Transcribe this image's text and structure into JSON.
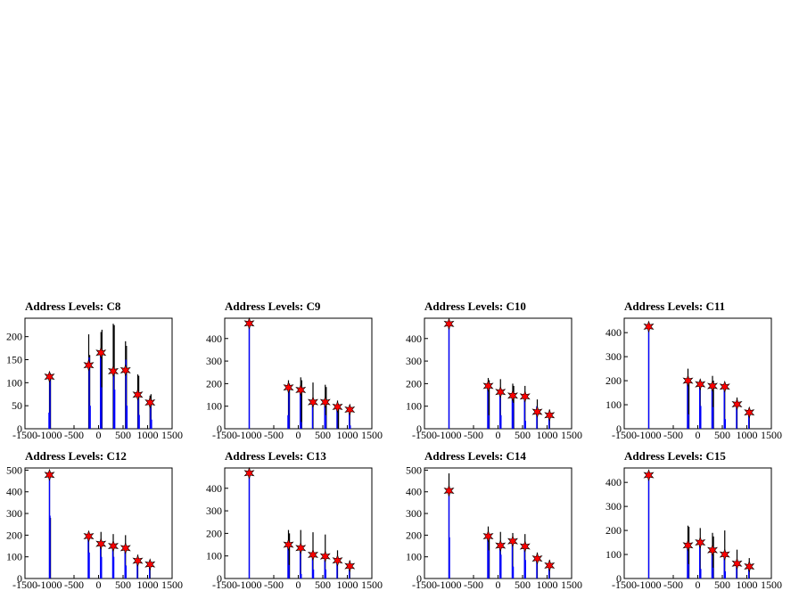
{
  "chart_data": [
    {
      "type": "bar",
      "title": "Address Levels: C8",
      "xlim": [
        -1500,
        1500
      ],
      "ylim": [
        0,
        240
      ],
      "xticks": [
        -1500,
        -1000,
        -500,
        0,
        500,
        1000,
        1500
      ],
      "yticks": [
        0,
        50,
        100,
        150,
        200
      ],
      "black_spikes": [
        [
          -1000,
          110
        ],
        [
          -980,
          120
        ],
        [
          -200,
          205
        ],
        [
          -180,
          160
        ],
        [
          50,
          210
        ],
        [
          70,
          215
        ],
        [
          300,
          228
        ],
        [
          320,
          225
        ],
        [
          550,
          190
        ],
        [
          570,
          180
        ],
        [
          800,
          118
        ],
        [
          820,
          115
        ],
        [
          1050,
          72
        ],
        [
          1070,
          75
        ]
      ],
      "blue_spikes": [
        [
          -1010,
          35
        ],
        [
          -990,
          120
        ],
        [
          -190,
          155
        ],
        [
          -170,
          50
        ],
        [
          40,
          160
        ],
        [
          60,
          90
        ],
        [
          310,
          130
        ],
        [
          330,
          85
        ],
        [
          560,
          150
        ],
        [
          580,
          50
        ],
        [
          810,
          80
        ],
        [
          830,
          30
        ],
        [
          1060,
          55
        ],
        [
          1080,
          20
        ]
      ],
      "markers": [
        [
          -1000,
          113
        ],
        [
          -200,
          138
        ],
        [
          50,
          165
        ],
        [
          300,
          125
        ],
        [
          550,
          127
        ],
        [
          800,
          74
        ],
        [
          1050,
          57
        ]
      ]
    },
    {
      "type": "bar",
      "title": "Address Levels: C9",
      "xlim": [
        -1500,
        1500
      ],
      "ylim": [
        0,
        490
      ],
      "xticks": [
        -1500,
        -1000,
        -500,
        0,
        500,
        1000,
        1500
      ],
      "yticks": [
        0,
        100,
        200,
        300,
        400
      ],
      "black_spikes": [
        [
          -1000,
          470
        ],
        [
          -200,
          215
        ],
        [
          -180,
          200
        ],
        [
          50,
          228
        ],
        [
          70,
          215
        ],
        [
          300,
          205
        ],
        [
          550,
          195
        ],
        [
          570,
          185
        ],
        [
          800,
          125
        ],
        [
          820,
          110
        ],
        [
          1050,
          100
        ]
      ],
      "blue_spikes": [
        [
          -1000,
          460
        ],
        [
          -210,
          60
        ],
        [
          -190,
          180
        ],
        [
          40,
          170
        ],
        [
          60,
          30
        ],
        [
          290,
          110
        ],
        [
          540,
          120
        ],
        [
          560,
          60
        ],
        [
          790,
          95
        ],
        [
          1040,
          80
        ],
        [
          1060,
          15
        ]
      ],
      "markers": [
        [
          -1000,
          467
        ],
        [
          -200,
          183
        ],
        [
          50,
          172
        ],
        [
          300,
          118
        ],
        [
          550,
          118
        ],
        [
          800,
          97
        ],
        [
          1050,
          85
        ]
      ]
    },
    {
      "type": "bar",
      "title": "Address Levels: C10",
      "xlim": [
        -1500,
        1500
      ],
      "ylim": [
        0,
        490
      ],
      "xticks": [
        -1500,
        -1000,
        -500,
        0,
        500,
        1000,
        1500
      ],
      "yticks": [
        0,
        100,
        200,
        300,
        400
      ],
      "black_spikes": [
        [
          -1000,
          470
        ],
        [
          -200,
          225
        ],
        [
          -180,
          215
        ],
        [
          50,
          220
        ],
        [
          300,
          200
        ],
        [
          320,
          190
        ],
        [
          550,
          190
        ],
        [
          800,
          130
        ],
        [
          1050,
          85
        ]
      ],
      "blue_spikes": [
        [
          -1000,
          460
        ],
        [
          -210,
          190
        ],
        [
          -190,
          60
        ],
        [
          40,
          160
        ],
        [
          60,
          60
        ],
        [
          290,
          145
        ],
        [
          310,
          115
        ],
        [
          540,
          150
        ],
        [
          560,
          35
        ],
        [
          790,
          100
        ],
        [
          1040,
          60
        ]
      ],
      "markers": [
        [
          -1000,
          465
        ],
        [
          -200,
          190
        ],
        [
          50,
          163
        ],
        [
          300,
          147
        ],
        [
          550,
          143
        ],
        [
          800,
          75
        ],
        [
          1050,
          60
        ]
      ]
    },
    {
      "type": "bar",
      "title": "Address Levels: C11",
      "xlim": [
        -1500,
        1500
      ],
      "ylim": [
        0,
        460
      ],
      "xticks": [
        -1500,
        -1000,
        -500,
        0,
        500,
        1000,
        1500
      ],
      "yticks": [
        0,
        100,
        200,
        300,
        400
      ],
      "black_spikes": [
        [
          -1000,
          430
        ],
        [
          -200,
          250
        ],
        [
          -180,
          210
        ],
        [
          50,
          205
        ],
        [
          300,
          220
        ],
        [
          320,
          200
        ],
        [
          550,
          185
        ],
        [
          800,
          130
        ],
        [
          1050,
          85
        ]
      ],
      "blue_spikes": [
        [
          -1000,
          425
        ],
        [
          -210,
          200
        ],
        [
          -190,
          60
        ],
        [
          40,
          185
        ],
        [
          60,
          95
        ],
        [
          290,
          175
        ],
        [
          310,
          90
        ],
        [
          540,
          175
        ],
        [
          560,
          40
        ],
        [
          790,
          105
        ],
        [
          1040,
          70
        ]
      ],
      "markers": [
        [
          -1000,
          425
        ],
        [
          -200,
          200
        ],
        [
          50,
          185
        ],
        [
          300,
          178
        ],
        [
          550,
          175
        ],
        [
          800,
          102
        ],
        [
          1050,
          68
        ]
      ]
    },
    {
      "type": "bar",
      "title": "Address Levels: C12",
      "xlim": [
        -1500,
        1500
      ],
      "ylim": [
        0,
        510
      ],
      "xticks": [
        -1500,
        -1000,
        -500,
        0,
        500,
        1000,
        1500
      ],
      "yticks": [
        0,
        100,
        200,
        300,
        400,
        500
      ],
      "black_spikes": [
        [
          -1000,
          490
        ],
        [
          -980,
          280
        ],
        [
          -200,
          205
        ],
        [
          50,
          215
        ],
        [
          300,
          205
        ],
        [
          550,
          200
        ],
        [
          800,
          110
        ],
        [
          1050,
          85
        ]
      ],
      "blue_spikes": [
        [
          -1000,
          480
        ],
        [
          -990,
          290
        ],
        [
          -210,
          195
        ],
        [
          -190,
          120
        ],
        [
          40,
          165
        ],
        [
          60,
          100
        ],
        [
          290,
          150
        ],
        [
          310,
          100
        ],
        [
          540,
          140
        ],
        [
          560,
          60
        ],
        [
          790,
          85
        ],
        [
          1040,
          65
        ]
      ],
      "markers": [
        [
          -1000,
          478
        ],
        [
          -200,
          195
        ],
        [
          50,
          160
        ],
        [
          300,
          150
        ],
        [
          550,
          140
        ],
        [
          800,
          82
        ],
        [
          1050,
          65
        ]
      ]
    },
    {
      "type": "bar",
      "title": "Address Levels: C13",
      "xlim": [
        -1500,
        1500
      ],
      "ylim": [
        0,
        490
      ],
      "xticks": [
        -1500,
        -1000,
        -500,
        0,
        500,
        1000,
        1500
      ],
      "yticks": [
        0,
        100,
        200,
        300,
        400
      ],
      "black_spikes": [
        [
          -1000,
          470
        ],
        [
          -200,
          215
        ],
        [
          -180,
          200
        ],
        [
          50,
          215
        ],
        [
          300,
          205
        ],
        [
          550,
          195
        ],
        [
          800,
          125
        ],
        [
          1050,
          80
        ]
      ],
      "blue_spikes": [
        [
          -1000,
          465
        ],
        [
          -210,
          150
        ],
        [
          -190,
          60
        ],
        [
          40,
          130
        ],
        [
          60,
          20
        ],
        [
          290,
          100
        ],
        [
          310,
          40
        ],
        [
          540,
          95
        ],
        [
          560,
          40
        ],
        [
          790,
          75
        ],
        [
          1040,
          50
        ]
      ],
      "markers": [
        [
          -1000,
          467
        ],
        [
          -200,
          150
        ],
        [
          50,
          135
        ],
        [
          300,
          105
        ],
        [
          550,
          98
        ],
        [
          800,
          80
        ],
        [
          1050,
          55
        ]
      ]
    },
    {
      "type": "bar",
      "title": "Address Levels: C14",
      "xlim": [
        -1500,
        1500
      ],
      "ylim": [
        0,
        510
      ],
      "xticks": [
        -1500,
        -1000,
        -500,
        0,
        500,
        1000,
        1500
      ],
      "yticks": [
        0,
        100,
        200,
        300,
        400,
        500
      ],
      "black_spikes": [
        [
          -1000,
          485
        ],
        [
          -200,
          240
        ],
        [
          -180,
          200
        ],
        [
          50,
          215
        ],
        [
          300,
          210
        ],
        [
          550,
          205
        ],
        [
          800,
          120
        ],
        [
          1050,
          85
        ]
      ],
      "blue_spikes": [
        [
          -1000,
          405
        ],
        [
          -990,
          190
        ],
        [
          -210,
          195
        ],
        [
          -190,
          130
        ],
        [
          40,
          150
        ],
        [
          60,
          110
        ],
        [
          290,
          170
        ],
        [
          310,
          55
        ],
        [
          540,
          150
        ],
        [
          560,
          85
        ],
        [
          790,
          90
        ],
        [
          1040,
          60
        ]
      ],
      "markers": [
        [
          -1000,
          405
        ],
        [
          -200,
          195
        ],
        [
          50,
          152
        ],
        [
          300,
          172
        ],
        [
          550,
          148
        ],
        [
          800,
          92
        ],
        [
          1050,
          60
        ]
      ]
    },
    {
      "type": "bar",
      "title": "Address Levels: C15",
      "xlim": [
        -1500,
        1500
      ],
      "ylim": [
        0,
        460
      ],
      "xticks": [
        -1500,
        -1000,
        -500,
        0,
        500,
        1000,
        1500
      ],
      "yticks": [
        0,
        100,
        200,
        300,
        400
      ],
      "black_spikes": [
        [
          -1000,
          435
        ],
        [
          -200,
          220
        ],
        [
          -180,
          215
        ],
        [
          50,
          210
        ],
        [
          300,
          190
        ],
        [
          320,
          175
        ],
        [
          550,
          200
        ],
        [
          800,
          120
        ],
        [
          1050,
          85
        ]
      ],
      "blue_spikes": [
        [
          -1000,
          430
        ],
        [
          -210,
          140
        ],
        [
          -190,
          60
        ],
        [
          40,
          150
        ],
        [
          60,
          40
        ],
        [
          290,
          120
        ],
        [
          310,
          45
        ],
        [
          540,
          100
        ],
        [
          560,
          30
        ],
        [
          790,
          70
        ],
        [
          1040,
          50
        ]
      ],
      "markers": [
        [
          -1000,
          430
        ],
        [
          -200,
          138
        ],
        [
          50,
          150
        ],
        [
          300,
          118
        ],
        [
          550,
          100
        ],
        [
          800,
          62
        ],
        [
          1050,
          50
        ]
      ]
    }
  ],
  "colors": {
    "primary_spikes": "#000000",
    "secondary_spikes": "#0000ff",
    "marker": "#ff0000"
  }
}
